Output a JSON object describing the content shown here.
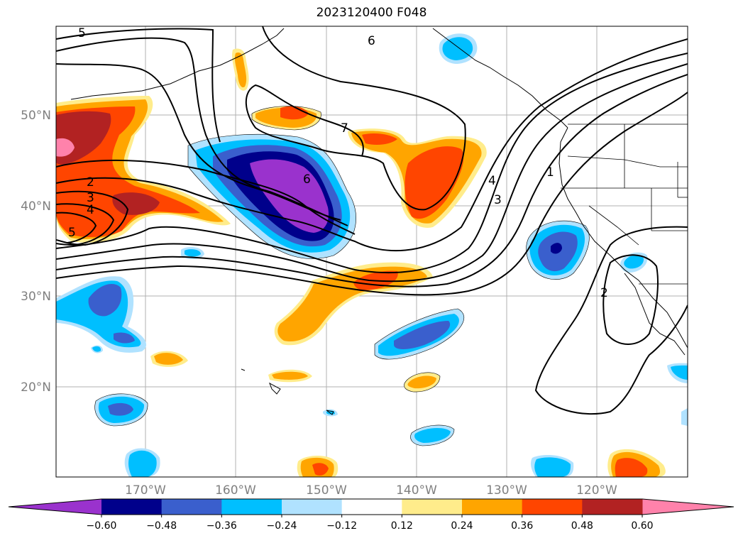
{
  "title": "2023120400 F048",
  "lon_labels": [
    "170°W",
    "160°W",
    "150°W",
    "140°W",
    "130°W",
    "120°W"
  ],
  "lat_labels": [
    "50°N",
    "40°N",
    "30°N",
    "20°N"
  ],
  "contour_labels": [
    "5",
    "6",
    "7",
    "6",
    "2",
    "3",
    "4",
    "5",
    "4",
    "3",
    "1",
    "2"
  ],
  "colorbar": {
    "ticks": [
      "−0.60",
      "−0.48",
      "−0.36",
      "−0.24",
      "−0.12",
      "0.12",
      "0.24",
      "0.36",
      "0.48",
      "0.60"
    ],
    "colors": [
      "#9a32cd",
      "#00008b",
      "#3a5fcd",
      "#00bfff",
      "#b0e2ff",
      "#ffffff",
      "#ffec8b",
      "#ffa500",
      "#ff4500",
      "#b22222",
      "#ff82ab"
    ]
  },
  "palette": {
    "purple": "#9a32cd",
    "navy": "#00008b",
    "blue": "#3a5fcd",
    "cyan": "#00bfff",
    "lightblue": "#b0e2ff",
    "yellow": "#ffec8b",
    "orange": "#ffa500",
    "redorange": "#ff4500",
    "firebrick": "#b22222",
    "pink": "#ff82ab"
  }
}
